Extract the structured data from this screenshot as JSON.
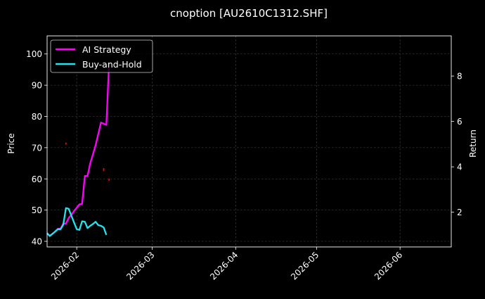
{
  "colors": {
    "background": "#000000",
    "foreground": "#ffffff",
    "grid": "#4a4a4a",
    "ai_strategy": "#ff00ff",
    "buy_and_hold": "#22e4ee",
    "candles": "#ff0000"
  },
  "chart_data": {
    "type": "line",
    "title": "cnoption [AU2610C1312.SHF]",
    "xlabel": "",
    "ylabel": "Price",
    "y2label": "Return",
    "grid": true,
    "legend_position": "top-left",
    "x_axis": {
      "type": "date",
      "range": [
        "2026-01-21",
        "2026-06-20"
      ],
      "ticks": [
        "2026-02-01",
        "2026-03-01",
        "2026-04-01",
        "2026-05-01",
        "2026-06-01"
      ],
      "tick_labels": [
        "2026-02",
        "2026-03",
        "2026-04",
        "2026-05",
        "2026-06"
      ]
    },
    "y_axis": {
      "range": [
        38.2,
        105.8
      ],
      "ticks": [
        40,
        50,
        60,
        70,
        80,
        90,
        100
      ]
    },
    "y2_axis": {
      "range": [
        0.47,
        9.77
      ],
      "ticks": [
        2,
        4,
        6,
        8
      ]
    },
    "series": [
      {
        "name": "AI Strategy",
        "axis": "y2",
        "color_key": "ai_strategy",
        "x": [
          "2026-01-21",
          "2026-01-22",
          "2026-01-23",
          "2026-01-24",
          "2026-01-25",
          "2026-01-26",
          "2026-01-27",
          "2026-01-28",
          "2026-01-29",
          "2026-01-30",
          "2026-01-31",
          "2026-02-01",
          "2026-02-02",
          "2026-02-03",
          "2026-02-04",
          "2026-02-05",
          "2026-02-06",
          "2026-02-07",
          "2026-02-08",
          "2026-02-09",
          "2026-02-10",
          "2026-02-11",
          "2026-02-12",
          "2026-02-13"
        ],
        "values": [
          1.05,
          0.97,
          1.05,
          1.15,
          1.27,
          1.27,
          1.5,
          1.5,
          1.75,
          1.88,
          2.05,
          2.2,
          2.35,
          2.37,
          3.6,
          3.6,
          4.15,
          4.55,
          4.95,
          5.45,
          5.95,
          5.9,
          5.85,
          8.6
        ]
      },
      {
        "name": "Buy-and-Hold",
        "axis": "y2",
        "color_key": "buy_and_hold",
        "x": [
          "2026-01-21",
          "2026-01-22",
          "2026-01-23",
          "2026-01-24",
          "2026-01-25",
          "2026-01-26",
          "2026-01-27",
          "2026-01-28",
          "2026-01-29",
          "2026-01-30",
          "2026-01-31",
          "2026-02-01",
          "2026-02-02",
          "2026-02-03",
          "2026-02-04",
          "2026-02-05",
          "2026-02-06",
          "2026-02-07",
          "2026-02-08",
          "2026-02-09",
          "2026-02-10",
          "2026-02-11",
          "2026-02-12",
          "2026-02-13",
          "2026-02-14"
        ],
        "values": [
          1.08,
          0.95,
          1.05,
          1.15,
          1.25,
          1.25,
          1.45,
          2.18,
          2.15,
          1.85,
          1.55,
          1.25,
          1.22,
          1.6,
          1.58,
          1.3,
          1.4,
          1.48,
          1.58,
          1.43,
          1.4,
          1.33,
          1.0,
          null,
          null
        ]
      }
    ],
    "scattered_price_marks": [
      {
        "x": "2026-01-28",
        "y": 71.3
      },
      {
        "x": "2026-02-11",
        "y": 63.1
      },
      {
        "x": "2026-02-11",
        "y": 62.8
      },
      {
        "x": "2026-02-13",
        "y": 59.7
      }
    ]
  }
}
